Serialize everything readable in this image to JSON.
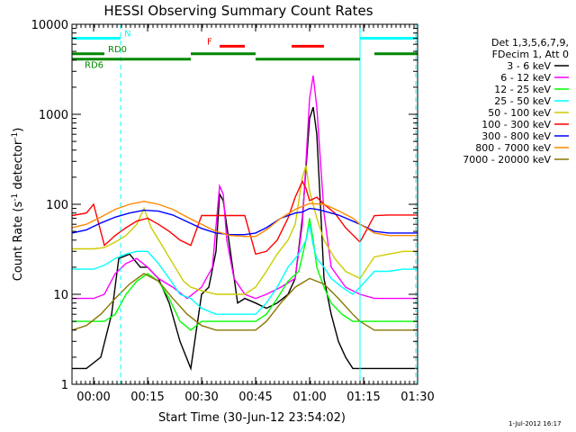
{
  "chart_data": {
    "type": "line",
    "title": "HESSI Observing Summary Count Rates",
    "xlabel": "Start Time (30-Jun-12 23:54:02)",
    "ylabel": {
      "main": "Count Rate (s",
      "sup1": "-1",
      "mid": " detector",
      "sup2": "-1",
      "end": ")"
    },
    "xlim": [
      0,
      96
    ],
    "ylim": [
      1,
      10000
    ],
    "yscale": "log",
    "grid": false,
    "x_ticks": [
      {
        "value": 6,
        "label": "00:00"
      },
      {
        "value": 21,
        "label": "00:15"
      },
      {
        "value": 36,
        "label": "00:30"
      },
      {
        "value": 51,
        "label": "00:45"
      },
      {
        "value": 66,
        "label": "01:00"
      },
      {
        "value": 81,
        "label": "01:15"
      },
      {
        "value": 96,
        "label": "01:30"
      }
    ],
    "y_ticks": [
      {
        "value": 1,
        "label": "1"
      },
      {
        "value": 10,
        "label": "10"
      },
      {
        "value": 100,
        "label": "100"
      },
      {
        "value": 1000,
        "label": "1000"
      },
      {
        "value": 10000,
        "label": "10000"
      }
    ],
    "legend": {
      "placement": "right",
      "header": [
        "Det 1,3,5,6,7,9,",
        "FDecim 1, Att 0"
      ],
      "entries": [
        {
          "label": "3 - 6 keV",
          "color": "#000000"
        },
        {
          "label": "6 - 12 keV",
          "color": "#ff00ff"
        },
        {
          "label": "12 - 25 keV",
          "color": "#00ff00"
        },
        {
          "label": "25 - 50 keV",
          "color": "#00ffff"
        },
        {
          "label": "50 - 100 keV",
          "color": "#cccc00"
        },
        {
          "label": "100 - 300 keV",
          "color": "#ff0000"
        },
        {
          "label": "300 - 800 keV",
          "color": "#0000ff"
        },
        {
          "label": "800 - 7000 keV",
          "color": "#ff8800"
        },
        {
          "label": "7000 - 20000 keV",
          "color": "#887700"
        }
      ]
    },
    "flag_bars": [
      {
        "label": "N",
        "color": "#00ffff",
        "y": 7000,
        "segments": [
          [
            0,
            13.5
          ],
          [
            80,
            96
          ]
        ]
      },
      {
        "label": "F",
        "color": "#ff0000",
        "y": 5700,
        "segments": [
          [
            41,
            48
          ],
          [
            61,
            70
          ]
        ]
      },
      {
        "label": "RD0",
        "color": "#008800",
        "y": 4700,
        "segments": [
          [
            0,
            9
          ],
          [
            33,
            51
          ]
        ]
      },
      {
        "label": "RD6",
        "color": "#008800",
        "y": 4100,
        "segments": [
          [
            0,
            33
          ],
          [
            51,
            80
          ]
        ]
      }
    ],
    "flag_extra_segments": [
      {
        "color": "#008800",
        "y": 4700,
        "segments": [
          [
            84,
            96
          ]
        ]
      }
    ],
    "vertical_markers": [
      {
        "x": 0,
        "color": "#00ffff",
        "style": "solid"
      },
      {
        "x": 13.5,
        "color": "#00ffff",
        "style": "dashed"
      },
      {
        "x": 80,
        "color": "#00ffff",
        "style": "solid"
      },
      {
        "x": 95.5,
        "color": "#00ffff",
        "style": "dashed"
      }
    ],
    "series": [
      {
        "name": "3 - 6 keV",
        "color": "#000000",
        "x": [
          0,
          4,
          8,
          11,
          13,
          16,
          19,
          21,
          24,
          27,
          30,
          33,
          36,
          38,
          40,
          41,
          42,
          44,
          46,
          48,
          51,
          54,
          57,
          60,
          62,
          64,
          66,
          67,
          68,
          69,
          70,
          72,
          74,
          76,
          78,
          80,
          84,
          88,
          92,
          96
        ],
        "y": [
          1.5,
          1.5,
          2,
          6,
          25,
          28,
          20,
          20,
          15,
          8,
          3,
          1.5,
          10,
          12,
          30,
          130,
          110,
          30,
          8,
          9,
          8,
          7,
          8,
          10,
          15,
          70,
          900,
          1200,
          600,
          100,
          15,
          6,
          3,
          2,
          1.5,
          1.5,
          1.5,
          1.5,
          1.5,
          1.5
        ]
      },
      {
        "name": "6 - 12 keV",
        "color": "#ff00ff",
        "x": [
          0,
          6,
          9,
          12,
          15,
          18,
          21,
          24,
          28,
          32,
          36,
          39,
          41,
          42,
          43,
          45,
          48,
          51,
          54,
          58,
          62,
          64,
          66,
          67,
          68,
          70,
          72,
          76,
          80,
          84,
          88,
          92,
          96
        ],
        "y": [
          9,
          9,
          10,
          17,
          22,
          25,
          20,
          15,
          12,
          9,
          12,
          20,
          160,
          130,
          40,
          15,
          10,
          9,
          10,
          12,
          15,
          60,
          1500,
          2700,
          1200,
          80,
          20,
          12,
          10,
          9,
          9,
          9,
          9
        ]
      },
      {
        "name": "12 - 25 keV",
        "color": "#00ff00",
        "x": [
          0,
          6,
          9,
          12,
          15,
          18,
          21,
          24,
          27,
          30,
          33,
          36,
          39,
          42,
          45,
          48,
          51,
          54,
          57,
          60,
          63,
          65,
          66,
          67,
          68,
          70,
          72,
          75,
          78,
          81,
          84,
          88,
          92,
          96
        ],
        "y": [
          5,
          5,
          5,
          6,
          10,
          14,
          17,
          14,
          9,
          5,
          4,
          5,
          5,
          5,
          5,
          5,
          5,
          6,
          9,
          14,
          18,
          40,
          70,
          40,
          20,
          12,
          8,
          6,
          5,
          5,
          5,
          5,
          5,
          5
        ]
      },
      {
        "name": "25 - 50 keV",
        "color": "#00ffff",
        "x": [
          0,
          6,
          9,
          12,
          15,
          18,
          21,
          24,
          27,
          30,
          33,
          36,
          40,
          44,
          48,
          51,
          54,
          57,
          60,
          63,
          65,
          66,
          67,
          68,
          70,
          72,
          75,
          78,
          80,
          84,
          88,
          92,
          96
        ],
        "y": [
          19,
          19,
          21,
          25,
          28,
          30,
          30,
          22,
          15,
          10,
          9,
          7,
          6,
          6,
          6,
          6,
          8,
          12,
          20,
          28,
          40,
          60,
          35,
          25,
          20,
          15,
          12,
          10,
          12,
          18,
          18,
          19,
          19
        ]
      },
      {
        "name": "50 - 100 keV",
        "color": "#cccc00",
        "x": [
          0,
          6,
          9,
          12,
          15,
          18,
          20,
          22,
          25,
          28,
          31,
          33,
          36,
          40,
          44,
          48,
          51,
          54,
          57,
          60,
          62,
          64,
          65,
          66,
          68,
          70,
          73,
          76,
          80,
          84,
          88,
          92,
          96
        ],
        "y": [
          32,
          32,
          33,
          38,
          45,
          60,
          90,
          55,
          35,
          22,
          14,
          12,
          11,
          10,
          10,
          10,
          12,
          18,
          28,
          40,
          60,
          200,
          270,
          140,
          70,
          40,
          25,
          18,
          15,
          26,
          28,
          30,
          30
        ]
      },
      {
        "name": "100 - 300 keV",
        "color": "#ff0000",
        "x": [
          0,
          4,
          6,
          9,
          12,
          15,
          18,
          21,
          24,
          27,
          30,
          33,
          36,
          40,
          44,
          48,
          51,
          54,
          57,
          60,
          62,
          64,
          65,
          66,
          68,
          70,
          73,
          76,
          80,
          84,
          88,
          92,
          96
        ],
        "y": [
          75,
          80,
          100,
          35,
          45,
          55,
          65,
          70,
          60,
          50,
          40,
          35,
          75,
          75,
          75,
          75,
          28,
          30,
          40,
          70,
          120,
          180,
          150,
          110,
          120,
          100,
          80,
          55,
          38,
          75,
          76,
          76,
          76
        ]
      },
      {
        "name": "300 - 800 keV",
        "color": "#0000ff",
        "x": [
          0,
          4,
          8,
          12,
          16,
          20,
          24,
          28,
          32,
          36,
          40,
          44,
          48,
          51,
          54,
          58,
          62,
          64,
          66,
          68,
          70,
          74,
          78,
          80,
          84,
          88,
          92,
          96
        ],
        "y": [
          48,
          52,
          62,
          72,
          80,
          86,
          84,
          76,
          64,
          54,
          48,
          46,
          46,
          48,
          55,
          70,
          80,
          82,
          90,
          88,
          84,
          76,
          65,
          60,
          50,
          48,
          48,
          48
        ]
      },
      {
        "name": "800 - 7000 keV",
        "color": "#ff8800",
        "x": [
          0,
          4,
          8,
          12,
          16,
          20,
          24,
          28,
          32,
          36,
          40,
          44,
          48,
          51,
          54,
          58,
          62,
          66,
          70,
          74,
          78,
          80,
          84,
          88,
          92,
          96
        ],
        "y": [
          55,
          60,
          72,
          88,
          100,
          108,
          100,
          88,
          72,
          60,
          50,
          45,
          44,
          44,
          52,
          70,
          88,
          102,
          100,
          85,
          70,
          60,
          48,
          45,
          45,
          45
        ]
      },
      {
        "name": "7000 - 20000 keV",
        "color": "#887700",
        "x": [
          0,
          4,
          8,
          12,
          16,
          20,
          24,
          28,
          32,
          36,
          40,
          44,
          48,
          51,
          54,
          58,
          62,
          66,
          70,
          74,
          78,
          80,
          84,
          88,
          92,
          96
        ],
        "y": [
          4,
          4.5,
          6,
          9,
          13,
          17,
          14,
          9,
          6,
          4.5,
          4,
          4,
          4,
          4,
          5,
          8,
          12,
          15,
          13,
          9,
          6,
          5,
          4,
          4,
          4,
          4
        ]
      }
    ],
    "timestamp": "1-Jul-2012 16:17"
  }
}
